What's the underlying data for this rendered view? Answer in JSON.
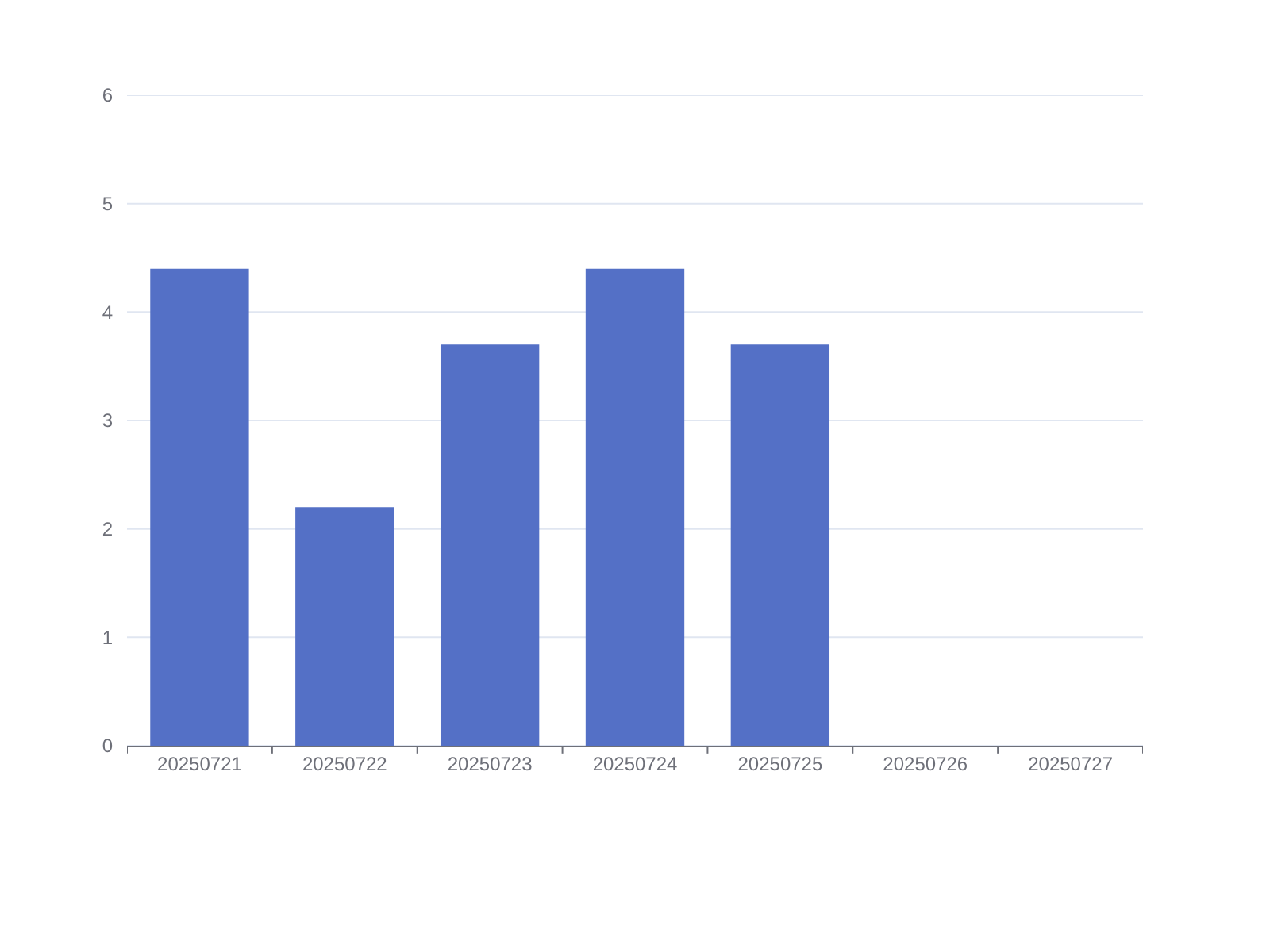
{
  "chart_data": {
    "type": "bar",
    "categories": [
      "20250721",
      "20250722",
      "20250723",
      "20250724",
      "20250725",
      "20250726",
      "20250727"
    ],
    "values": [
      4.4,
      2.2,
      3.7,
      4.4,
      3.7,
      0,
      0
    ],
    "color": "#5470c6",
    "ylim": [
      0,
      6
    ],
    "yticks": [
      0,
      1,
      2,
      3,
      4,
      5,
      6
    ],
    "grid": "y"
  }
}
